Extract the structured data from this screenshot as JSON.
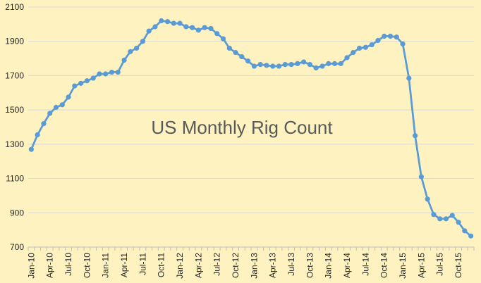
{
  "chart_data": {
    "type": "line",
    "title": "US Monthly Rig Count",
    "xlabel": "",
    "ylabel": "",
    "ylim": [
      700,
      2100
    ],
    "yticks": [
      700,
      900,
      1100,
      1300,
      1500,
      1700,
      1900,
      2100
    ],
    "grid": true,
    "legend": "none",
    "series_color": "#5b9bd5",
    "background_color": "#fdf2c0",
    "x_tick_labels": [
      "Jan-10",
      "Apr-10",
      "Jul-10",
      "Oct-10",
      "Jan-11",
      "Apr-11",
      "Jul-11",
      "Oct-11",
      "Jan-12",
      "Apr-12",
      "Jul-12",
      "Oct-12",
      "Jan-13",
      "Apr-13",
      "Jul-13",
      "Oct-13",
      "Jan-14",
      "Apr-14",
      "Jul-14",
      "Oct-14",
      "Jan-15",
      "Apr-15",
      "Jul-15",
      "Oct-15"
    ],
    "x": [
      "Jan-10",
      "Feb-10",
      "Mar-10",
      "Apr-10",
      "May-10",
      "Jun-10",
      "Jul-10",
      "Aug-10",
      "Sep-10",
      "Oct-10",
      "Nov-10",
      "Dec-10",
      "Jan-11",
      "Feb-11",
      "Mar-11",
      "Apr-11",
      "May-11",
      "Jun-11",
      "Jul-11",
      "Aug-11",
      "Sep-11",
      "Oct-11",
      "Nov-11",
      "Dec-11",
      "Jan-12",
      "Feb-12",
      "Mar-12",
      "Apr-12",
      "May-12",
      "Jun-12",
      "Jul-12",
      "Aug-12",
      "Sep-12",
      "Oct-12",
      "Nov-12",
      "Dec-12",
      "Jan-13",
      "Feb-13",
      "Mar-13",
      "Apr-13",
      "May-13",
      "Jun-13",
      "Jul-13",
      "Aug-13",
      "Sep-13",
      "Oct-13",
      "Nov-13",
      "Dec-13",
      "Jan-14",
      "Feb-14",
      "Mar-14",
      "Apr-14",
      "May-14",
      "Jun-14",
      "Jul-14",
      "Aug-14",
      "Sep-14",
      "Oct-14",
      "Nov-14",
      "Dec-14",
      "Jan-15",
      "Feb-15",
      "Mar-15",
      "Apr-15",
      "May-15",
      "Jun-15",
      "Jul-15",
      "Aug-15",
      "Sep-15",
      "Oct-15",
      "Nov-15",
      "Dec-15"
    ],
    "series": [
      {
        "values": [
          1270,
          1355,
          1420,
          1480,
          1515,
          1530,
          1575,
          1640,
          1655,
          1670,
          1685,
          1710,
          1710,
          1720,
          1720,
          1790,
          1840,
          1860,
          1900,
          1960,
          1985,
          2020,
          2015,
          2005,
          2005,
          1985,
          1980,
          1965,
          1980,
          1975,
          1945,
          1915,
          1860,
          1835,
          1810,
          1785,
          1755,
          1765,
          1760,
          1755,
          1755,
          1765,
          1765,
          1770,
          1780,
          1765,
          1745,
          1755,
          1770,
          1770,
          1770,
          1805,
          1835,
          1860,
          1865,
          1880,
          1905,
          1930,
          1930,
          1925,
          1885,
          1685,
          1350,
          1110,
          980,
          890,
          865,
          865,
          885,
          845,
          795,
          765
        ]
      }
    ]
  }
}
